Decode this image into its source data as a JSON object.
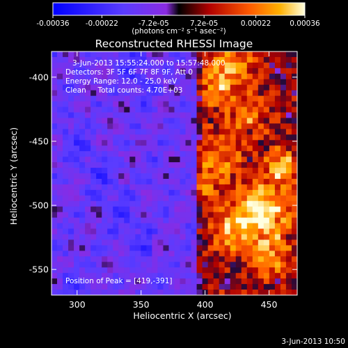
{
  "chart_data": {
    "type": "heatmap",
    "title": "Reconstructed RHESSI Image",
    "xlabel": "Heliocentric X (arcsec)",
    "ylabel": "Heliocentric Y (arcsec)",
    "xlim": [
      280,
      472
    ],
    "ylim": [
      -570,
      -380
    ],
    "x_ticks": [
      300,
      350,
      400,
      450
    ],
    "y_ticks": [
      -400,
      -450,
      -500,
      -550
    ],
    "colorbar": {
      "ticks": [
        "-0.00036",
        "-0.00022",
        "-7.2e-05",
        "7.2e-05",
        "0.00022",
        "0.00036"
      ],
      "range": [
        -0.00036,
        0.00036
      ],
      "unit_label": "(photons cm⁻² s⁻¹ asec⁻²)"
    },
    "annotations": {
      "time_range": "3-Jun-2013 15:55:24.000 to 15:57:48.000",
      "detectors": "Detectors: 3F 5F 6F 7F 8F 9F, Att 0",
      "energy_range": "Energy Range: 12.0 - 25.0 keV",
      "method_counts": "Clean     Total counts: 4.70E+03",
      "peak_position": "Position of Peak = [419,-391]"
    },
    "emission_region": {
      "description_values": "bright source spanning x 395-470, y -550 to -395; peak at [419,-391]",
      "peak_x": 419,
      "peak_y": -391
    }
  },
  "footer": {
    "timestamp": "3-Jun-2013 10:50"
  }
}
